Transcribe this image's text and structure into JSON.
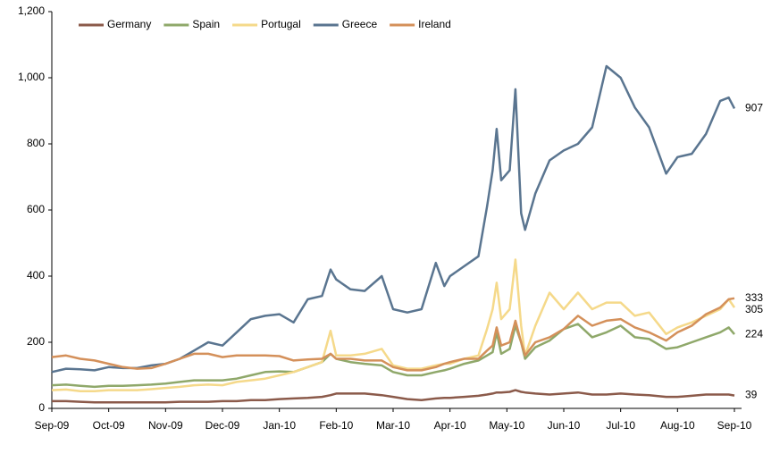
{
  "chart_data": {
    "type": "line",
    "x": [
      0,
      0.25,
      0.5,
      0.75,
      1,
      1.25,
      1.5,
      1.75,
      2,
      2.25,
      2.5,
      2.75,
      3,
      3.25,
      3.5,
      3.75,
      4,
      4.25,
      4.5,
      4.75,
      4.9,
      5,
      5.25,
      5.5,
      5.8,
      6,
      6.25,
      6.5,
      6.75,
      6.9,
      7,
      7.25,
      7.5,
      7.65,
      7.75,
      7.82,
      7.9,
      8.05,
      8.15,
      8.25,
      8.32,
      8.5,
      8.75,
      9,
      9.25,
      9.5,
      9.75,
      10,
      10.25,
      10.5,
      10.8,
      11,
      11.25,
      11.5,
      11.75,
      11.9,
      12
    ],
    "series": [
      {
        "name": "Germany",
        "color": "#8b5a4a",
        "values": [
          22,
          22,
          20,
          18,
          18,
          18,
          18,
          18,
          18,
          20,
          20,
          20,
          22,
          22,
          25,
          25,
          28,
          30,
          32,
          35,
          40,
          45,
          45,
          45,
          40,
          35,
          28,
          25,
          30,
          32,
          32,
          35,
          38,
          42,
          45,
          48,
          48,
          50,
          55,
          50,
          48,
          45,
          42,
          45,
          48,
          42,
          42,
          45,
          42,
          40,
          35,
          35,
          38,
          42,
          42,
          42,
          39
        ]
      },
      {
        "name": "Spain",
        "color": "#8fa86a",
        "values": [
          70,
          72,
          68,
          65,
          68,
          68,
          70,
          72,
          75,
          80,
          85,
          85,
          85,
          90,
          100,
          110,
          112,
          110,
          125,
          140,
          165,
          150,
          140,
          135,
          130,
          110,
          100,
          100,
          110,
          115,
          120,
          135,
          145,
          160,
          170,
          230,
          165,
          180,
          250,
          200,
          150,
          185,
          205,
          240,
          255,
          215,
          230,
          250,
          215,
          210,
          180,
          185,
          200,
          215,
          230,
          245,
          224
        ]
      },
      {
        "name": "Portugal",
        "color": "#f5d98a",
        "values": [
          55,
          57,
          52,
          52,
          55,
          55,
          55,
          58,
          62,
          65,
          70,
          72,
          70,
          80,
          85,
          90,
          100,
          110,
          125,
          140,
          235,
          160,
          160,
          165,
          180,
          130,
          120,
          120,
          130,
          135,
          135,
          150,
          160,
          240,
          300,
          380,
          270,
          300,
          450,
          250,
          160,
          250,
          350,
          300,
          350,
          300,
          320,
          320,
          280,
          290,
          225,
          245,
          260,
          280,
          300,
          330,
          305
        ]
      },
      {
        "name": "Greece",
        "color": "#5a7590",
        "values": [
          110,
          120,
          118,
          115,
          125,
          122,
          122,
          130,
          135,
          150,
          175,
          200,
          190,
          230,
          270,
          280,
          285,
          260,
          330,
          340,
          420,
          390,
          360,
          355,
          400,
          300,
          290,
          300,
          440,
          370,
          400,
          430,
          460,
          610,
          720,
          845,
          690,
          720,
          965,
          590,
          540,
          650,
          750,
          780,
          800,
          850,
          1035,
          1000,
          910,
          850,
          710,
          760,
          770,
          830,
          930,
          940,
          907
        ]
      },
      {
        "name": "Ireland",
        "color": "#d4905a",
        "values": [
          155,
          160,
          150,
          145,
          135,
          125,
          120,
          122,
          135,
          150,
          165,
          165,
          155,
          160,
          160,
          160,
          158,
          145,
          148,
          150,
          165,
          150,
          150,
          145,
          145,
          125,
          115,
          115,
          125,
          135,
          140,
          150,
          150,
          175,
          190,
          245,
          190,
          200,
          265,
          200,
          160,
          200,
          215,
          240,
          280,
          250,
          265,
          270,
          245,
          230,
          205,
          230,
          250,
          285,
          305,
          330,
          333
        ]
      }
    ],
    "xlim": [
      0,
      12
    ],
    "xticks": [
      {
        "value": 0,
        "label": "Sep-09"
      },
      {
        "value": 1,
        "label": "Oct-09"
      },
      {
        "value": 2,
        "label": "Nov-09"
      },
      {
        "value": 3,
        "label": "Dec-09"
      },
      {
        "value": 4,
        "label": "Jan-10"
      },
      {
        "value": 5,
        "label": "Feb-10"
      },
      {
        "value": 6,
        "label": "Mar-10"
      },
      {
        "value": 7,
        "label": "Apr-10"
      },
      {
        "value": 8,
        "label": "May-10"
      },
      {
        "value": 9,
        "label": "Jun-10"
      },
      {
        "value": 10,
        "label": "Jul-10"
      },
      {
        "value": 11,
        "label": "Aug-10"
      },
      {
        "value": 12,
        "label": "Sep-10"
      }
    ],
    "ylim": [
      0,
      1200
    ],
    "yticks": [
      0,
      200,
      400,
      600,
      800,
      {
        "value": 1000,
        "label": "1,000"
      },
      {
        "value": 1200,
        "label": "1,200"
      }
    ],
    "grid": false,
    "legend": "top-left",
    "end_labels": true
  }
}
